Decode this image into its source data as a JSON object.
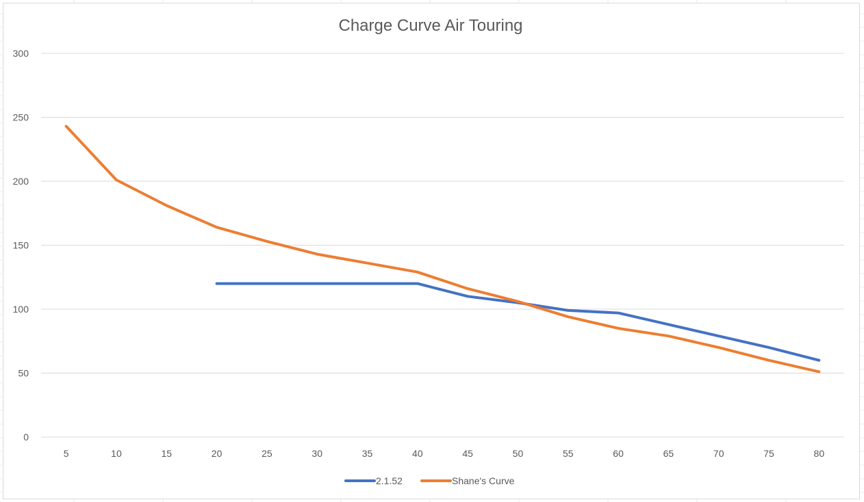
{
  "chart_data": {
    "type": "line",
    "title": "Charge Curve Air Touring",
    "xlabel": "",
    "ylabel": "",
    "categories": [
      "5",
      "10",
      "15",
      "20",
      "25",
      "30",
      "35",
      "40",
      "45",
      "50",
      "55",
      "60",
      "65",
      "70",
      "75",
      "80"
    ],
    "ylim": [
      0,
      300
    ],
    "yticks": [
      "0",
      "50",
      "100",
      "150",
      "200",
      "250",
      "300"
    ],
    "grid": true,
    "legend_position": "bottom",
    "series": [
      {
        "name": "2.1.52",
        "color": "#4472C4",
        "values": [
          null,
          null,
          null,
          120,
          120,
          120,
          120,
          120,
          110,
          105,
          99,
          97,
          88,
          79,
          70,
          60
        ]
      },
      {
        "name": "Shane's Curve",
        "color": "#ED7D31",
        "values": [
          243,
          201,
          181,
          164,
          153,
          143,
          136,
          129,
          116,
          106,
          94,
          85,
          79,
          70,
          60,
          51
        ]
      }
    ]
  }
}
